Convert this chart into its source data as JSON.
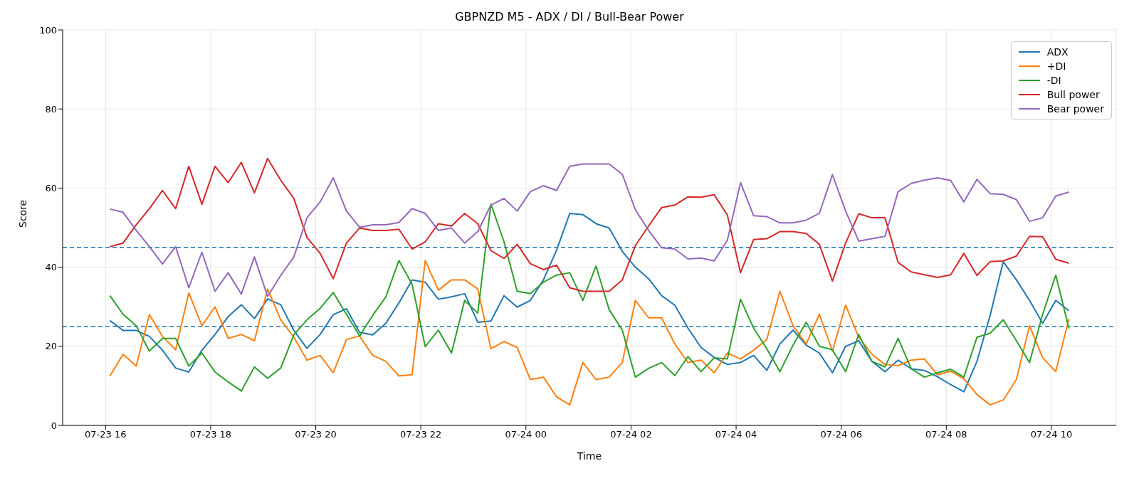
{
  "chart_data": {
    "type": "line",
    "title": "GBPNZD M5 - ADX / DI / Bull-Bear Power",
    "xlabel": "Time",
    "ylabel": "Score",
    "x": [
      "--07-23T16:05",
      "--07-23T16:20",
      "--07-23T16:35",
      "--07-23T16:50",
      "--07-23T17:05",
      "--07-23T17:20",
      "--07-23T17:35",
      "--07-23T17:50",
      "--07-23T18:05",
      "--07-23T18:20",
      "--07-23T18:35",
      "--07-23T18:50",
      "--07-23T19:05",
      "--07-23T19:20",
      "--07-23T19:35",
      "--07-23T19:50",
      "--07-23T20:05",
      "--07-23T20:20",
      "--07-23T20:35",
      "--07-23T20:50",
      "--07-23T21:05",
      "--07-23T21:20",
      "--07-23T21:35",
      "--07-23T21:50",
      "--07-23T22:05",
      "--07-23T22:20",
      "--07-23T22:35",
      "--07-23T22:50",
      "--07-23T23:05",
      "--07-23T23:20",
      "--07-23T23:35",
      "--07-23T23:50",
      "--07-24T00:05",
      "--07-24T00:20",
      "--07-24T00:35",
      "--07-24T00:50",
      "--07-24T01:05",
      "--07-24T01:20",
      "--07-24T01:35",
      "--07-24T01:50",
      "--07-24T02:05",
      "--07-24T02:20",
      "--07-24T02:35",
      "--07-24T02:50",
      "--07-24T03:05",
      "--07-24T03:20",
      "--07-24T03:35",
      "--07-24T03:50",
      "--07-24T04:05",
      "--07-24T04:20",
      "--07-24T04:35",
      "--07-24T04:50",
      "--07-24T05:05",
      "--07-24T05:20",
      "--07-24T05:35",
      "--07-24T05:50",
      "--07-24T06:05",
      "--07-24T06:20",
      "--07-24T06:35",
      "--07-24T06:50",
      "--07-24T07:05",
      "--07-24T07:20",
      "--07-24T07:35",
      "--07-24T07:50",
      "--07-24T08:05",
      "--07-24T08:20",
      "--07-24T08:35",
      "--07-24T08:50",
      "--07-24T09:05",
      "--07-24T09:20",
      "--07-24T09:35",
      "--07-24T09:50",
      "--07-24T10:05",
      "--07-24T10:20"
    ],
    "series": [
      {
        "name": "ADX",
        "color": "#1f77b4",
        "values": [
          26.5,
          24.0,
          24.0,
          22.5,
          19.0,
          14.5,
          13.5,
          19.0,
          23.0,
          27.5,
          30.5,
          27.0,
          32.0,
          30.5,
          24.0,
          19.5,
          23.0,
          28.0,
          29.5,
          23.5,
          22.9,
          25.8,
          31,
          36.8,
          36.2,
          31.9,
          32.5,
          33.3,
          26.1,
          26.4,
          32.8,
          29.9,
          31.6,
          36.8,
          44.3,
          53.6,
          53.3,
          51,
          49.9,
          44,
          40,
          37.1,
          32.8,
          30.4,
          24.6,
          19.7,
          17.2,
          15.4,
          15.9,
          17.7,
          13.9,
          20.6,
          24.1,
          20.3,
          18.3,
          13.3,
          20,
          21.4,
          16.2,
          13.6,
          16.5,
          14.3,
          13.9,
          12.3,
          10.3,
          8.5,
          16.2,
          27.8,
          41.4,
          36.8,
          31.6,
          25.8,
          31.6,
          29
        ]
      },
      {
        "name": "+DI",
        "color": "#ff7f0e",
        "values": [
          12.5,
          18,
          15,
          28,
          22.5,
          19.1,
          33.5,
          25.2,
          30,
          22,
          23,
          21.4,
          34.5,
          26.7,
          22.3,
          16.5,
          17.7,
          13.3,
          21.7,
          22.6,
          17.7,
          16.2,
          12.5,
          12.8,
          41.7,
          34.2,
          36.8,
          36.8,
          34.5,
          19.4,
          21.2,
          19.7,
          11.6,
          12.2,
          7.2,
          5.2,
          15.9,
          11.6,
          12.2,
          15.9,
          31.6,
          27.2,
          27.2,
          20.6,
          15.9,
          16.5,
          13.3,
          18.3,
          16.8,
          19,
          21.7,
          33.9,
          25.2,
          20.6,
          28.1,
          18.8,
          30.4,
          22.3,
          18,
          15.4,
          15.1,
          16.5,
          16.8,
          12.8,
          13.7,
          11.8,
          7.8,
          5.2,
          6.4,
          11.6,
          25.2,
          17.1,
          13.6,
          27
        ]
      },
      {
        "name": "-DI",
        "color": "#2ca02c",
        "values": [
          32.8,
          28.1,
          25.2,
          18.8,
          22,
          22,
          15,
          18.3,
          13.5,
          11,
          8.7,
          14.8,
          11.9,
          14.5,
          22.9,
          26.7,
          29.6,
          33.6,
          28.1,
          22.6,
          27.8,
          32.5,
          41.7,
          35.7,
          19.9,
          24.1,
          18.3,
          31.6,
          28.4,
          56,
          46.4,
          33.9,
          33.3,
          36.2,
          38,
          38.6,
          31.6,
          40.3,
          29.3,
          24.1,
          12.2,
          14.4,
          15.9,
          12.6,
          17.4,
          13.6,
          17.1,
          16.8,
          31.9,
          24.6,
          19.4,
          13.6,
          20.3,
          26.1,
          20,
          19.1,
          13.6,
          23,
          16.2,
          14.8,
          22,
          14.3,
          12.2,
          13.3,
          14.2,
          12.2,
          22.3,
          23.3,
          26.7,
          21.4,
          15.9,
          28.1,
          38,
          24.5
        ]
      },
      {
        "name": "Bull power",
        "color": "#d62728",
        "values": [
          45.2,
          46.1,
          50.7,
          54.8,
          59.4,
          54.8,
          65.5,
          55.9,
          65.5,
          61.4,
          66.5,
          58.8,
          67.5,
          62,
          57.4,
          47.5,
          43.5,
          37.1,
          46.1,
          49.9,
          49.3,
          49.3,
          49.6,
          44.6,
          46.4,
          51,
          50.4,
          53.6,
          51,
          44.2,
          42.2,
          45.8,
          40.9,
          39.4,
          40.5,
          34.8,
          33.9,
          33.9,
          33.9,
          36.8,
          45.5,
          50.4,
          55.1,
          55.7,
          57.8,
          57.7,
          58.3,
          53.2,
          38.6,
          47,
          47.2,
          49,
          49,
          48.5,
          45.8,
          36.5,
          46.1,
          53.5,
          52.5,
          52.5,
          41.2,
          38.8,
          38.1,
          37.4,
          38.1,
          43.5,
          37.9,
          41.4,
          41.6,
          42.8,
          47.8,
          47.7,
          42,
          41
        ]
      },
      {
        "name": "Bear power",
        "color": "#9467bd",
        "values": [
          54.7,
          53.9,
          49.3,
          45.2,
          40.8,
          45.2,
          34.8,
          43.8,
          33.9,
          38.6,
          33.2,
          42.6,
          32.6,
          37.9,
          42.6,
          52.5,
          56.5,
          62.6,
          54.2,
          50.1,
          50.7,
          50.7,
          51.3,
          54.8,
          53.6,
          49.3,
          49.9,
          46.1,
          49,
          55.7,
          57.4,
          54.2,
          59.1,
          60.6,
          59.4,
          65.5,
          66.1,
          66.1,
          66.1,
          63.5,
          54.5,
          49.3,
          44.9,
          44.6,
          42.1,
          42.3,
          41.6,
          46.8,
          61.4,
          53,
          52.8,
          51.2,
          51.2,
          51.9,
          53.6,
          63.4,
          54.2,
          46.6,
          47.2,
          47.8,
          59.1,
          61.2,
          62,
          62.6,
          61.9,
          56.5,
          62.2,
          58.6,
          58.4,
          57.1,
          51.6,
          52.5,
          58,
          59
        ]
      }
    ],
    "xlim": [
      "--07-23T15:11",
      "--07-24T11:14"
    ],
    "xticks": [
      {
        "value": "--07-23T16:00",
        "label": "07-23 16"
      },
      {
        "value": "--07-23T18:00",
        "label": "07-23 18"
      },
      {
        "value": "--07-23T20:00",
        "label": "07-23 20"
      },
      {
        "value": "--07-23T22:00",
        "label": "07-23 22"
      },
      {
        "value": "--07-24T00:00",
        "label": "07-24 00"
      },
      {
        "value": "--07-24T02:00",
        "label": "07-24 02"
      },
      {
        "value": "--07-24T04:00",
        "label": "07-24 04"
      },
      {
        "value": "--07-24T06:00",
        "label": "07-24 06"
      },
      {
        "value": "--07-24T08:00",
        "label": "07-24 08"
      },
      {
        "value": "--07-24T10:00",
        "label": "07-24 10"
      }
    ],
    "ylim": [
      0,
      100
    ],
    "yticks": [
      0,
      20,
      40,
      60,
      80,
      100
    ],
    "ref_lines": [
      {
        "axis": "y",
        "value": 45,
        "color": "#1f77b4",
        "line_style": "dashed"
      },
      {
        "axis": "y",
        "value": 25,
        "color": "#1f77b4",
        "line_style": "dashed"
      }
    ],
    "grid": true,
    "legend": "top right"
  }
}
